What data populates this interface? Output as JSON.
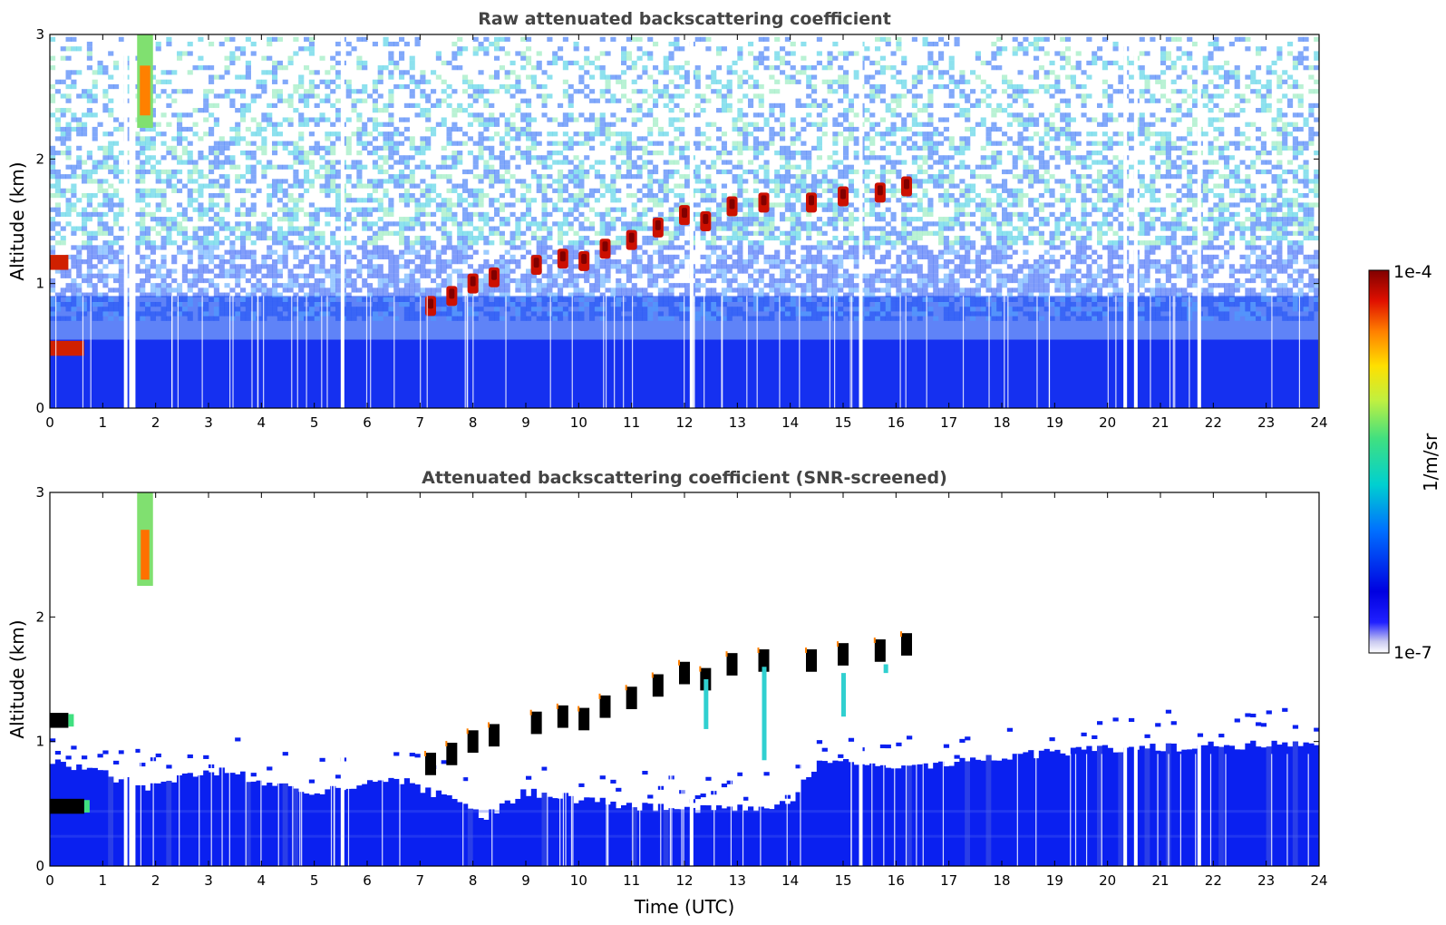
{
  "chart_data": [
    {
      "type": "heatmap",
      "title": "Raw attenuated backscattering coefficient",
      "xlabel": "",
      "ylabel": "Altitude (km)",
      "xlim": [
        0,
        24
      ],
      "ylim": [
        0,
        3
      ],
      "x_ticks": [
        "0",
        "1",
        "2",
        "3",
        "4",
        "5",
        "6",
        "7",
        "8",
        "9",
        "10",
        "11",
        "12",
        "13",
        "14",
        "15",
        "16",
        "17",
        "18",
        "19",
        "20",
        "21",
        "22",
        "23",
        "24"
      ],
      "y_ticks": [
        "0",
        "1",
        "2",
        "3"
      ],
      "grid": false,
      "features": {
        "cloud_layer": [
          {
            "t": 7.2,
            "alt": 0.82
          },
          {
            "t": 7.6,
            "alt": 0.9
          },
          {
            "t": 8.0,
            "alt": 1.0
          },
          {
            "t": 8.4,
            "alt": 1.05
          },
          {
            "t": 9.2,
            "alt": 1.15
          },
          {
            "t": 9.7,
            "alt": 1.2
          },
          {
            "t": 10.1,
            "alt": 1.18
          },
          {
            "t": 10.5,
            "alt": 1.28
          },
          {
            "t": 11.0,
            "alt": 1.35
          },
          {
            "t": 11.5,
            "alt": 1.45
          },
          {
            "t": 12.0,
            "alt": 1.55
          },
          {
            "t": 12.4,
            "alt": 1.5
          },
          {
            "t": 12.9,
            "alt": 1.62
          },
          {
            "t": 13.5,
            "alt": 1.65
          },
          {
            "t": 14.4,
            "alt": 1.65
          },
          {
            "t": 15.0,
            "alt": 1.7
          },
          {
            "t": 15.7,
            "alt": 1.73
          },
          {
            "t": 16.2,
            "alt": 1.78
          }
        ],
        "early_layers": [
          {
            "t0": 0.0,
            "t1": 0.35,
            "alt": 1.17
          },
          {
            "t0": 0.0,
            "t1": 0.65,
            "alt": 0.48
          }
        ],
        "high_feature": {
          "t0": 1.65,
          "t1": 1.95,
          "alt0": 2.25,
          "alt1": 3.0
        },
        "gaps_hours": [
          1.4,
          1.5,
          1.55,
          5.5,
          12.1,
          15.3,
          20.3,
          20.5,
          21.7
        ]
      }
    },
    {
      "type": "heatmap",
      "title": "Attenuated backscattering coefficient (SNR-screened)",
      "xlabel": "Time (UTC)",
      "ylabel": "Altitude (km)",
      "xlim": [
        0,
        24
      ],
      "ylim": [
        0,
        3
      ],
      "x_ticks": [
        "0",
        "1",
        "2",
        "3",
        "4",
        "5",
        "6",
        "7",
        "8",
        "9",
        "10",
        "11",
        "12",
        "13",
        "14",
        "15",
        "16",
        "17",
        "18",
        "19",
        "20",
        "21",
        "22",
        "23",
        "24"
      ],
      "y_ticks": [
        "0",
        "1",
        "2",
        "3"
      ],
      "grid": false,
      "features": {
        "boundary_layer_top_km": [
          {
            "t": 0,
            "alt": 0.85
          },
          {
            "t": 2,
            "alt": 0.62
          },
          {
            "t": 3,
            "alt": 0.78
          },
          {
            "t": 5,
            "alt": 0.6
          },
          {
            "t": 6.5,
            "alt": 0.72
          },
          {
            "t": 7.5,
            "alt": 0.55
          },
          {
            "t": 8.2,
            "alt": 0.38
          },
          {
            "t": 9,
            "alt": 0.6
          },
          {
            "t": 11,
            "alt": 0.48
          },
          {
            "t": 12.5,
            "alt": 0.45
          },
          {
            "t": 14,
            "alt": 0.5
          },
          {
            "t": 14.5,
            "alt": 0.82
          },
          {
            "t": 17,
            "alt": 0.82
          },
          {
            "t": 19,
            "alt": 0.92
          },
          {
            "t": 21,
            "alt": 0.95
          },
          {
            "t": 24,
            "alt": 0.98
          }
        ]
      }
    }
  ],
  "colorbar": {
    "label": "1/m/sr",
    "min_label": "1e-7",
    "max_label": "1e-4",
    "scale": "log",
    "colors": [
      "#ffffff",
      "#c8c8f0",
      "#2020ff",
      "#0000e0",
      "#0070ff",
      "#00d0d0",
      "#40e080",
      "#c0f040",
      "#ffe000",
      "#ff8000",
      "#e01000",
      "#800000"
    ]
  }
}
